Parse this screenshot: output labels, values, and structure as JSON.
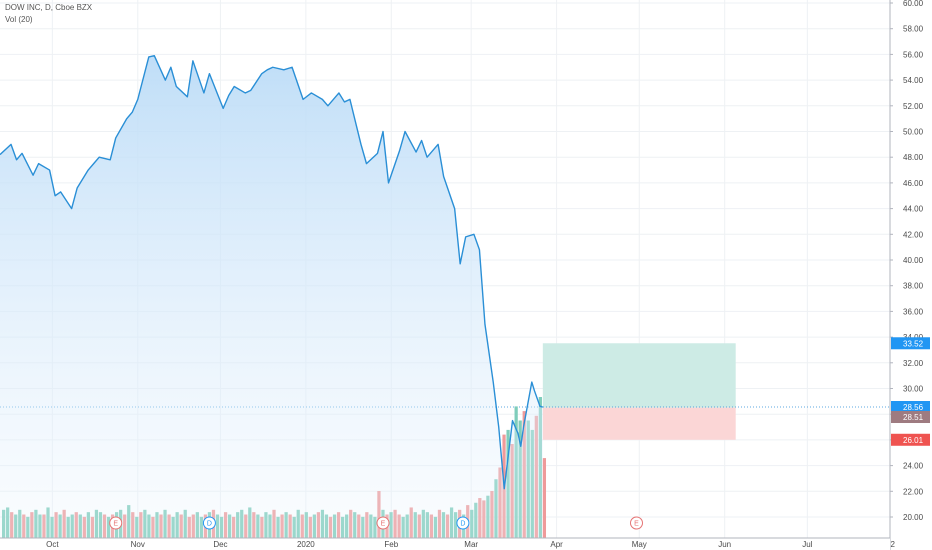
{
  "legend": {
    "symbol_line": "DOW INC, D, Cboe BZX",
    "volume_line": "Vol (20)"
  },
  "colors": {
    "line": "#2a8fd6",
    "area_top": "#bcdcf7",
    "volume_up": "#7fcdbb",
    "volume_down": "#ef9a9a",
    "profit_zone": "#cdebe5",
    "loss_zone": "#fbd6d6",
    "badge_last": "#2196f3",
    "badge_target": "#2196f3",
    "badge_stop": "#ef5350",
    "badge_entry": "#9e7b80"
  },
  "chart_data": {
    "type": "line",
    "title": "DOW INC, D, Cboe BZX",
    "xlabel": "",
    "ylabel": "",
    "ylim": [
      19,
      60
    ],
    "y_ticks": [
      "20.00",
      "22.00",
      "24.00",
      "26.00",
      "28.00",
      "30.00",
      "32.00",
      "34.00",
      "36.00",
      "38.00",
      "40.00",
      "42.00",
      "44.00",
      "46.00",
      "48.00",
      "50.00",
      "52.00",
      "54.00",
      "56.00",
      "58.00",
      "60.00"
    ],
    "x_ticks": [
      {
        "label": "Oct",
        "date": "2019-10-01"
      },
      {
        "label": "Nov",
        "date": "2019-11-01"
      },
      {
        "label": "Dec",
        "date": "2019-12-01"
      },
      {
        "label": "2020",
        "date": "2020-01-01"
      },
      {
        "label": "Feb",
        "date": "2020-02-01"
      },
      {
        "label": "Mar",
        "date": "2020-03-01"
      },
      {
        "label": "Apr",
        "date": "2020-04-01"
      },
      {
        "label": "May",
        "date": "2020-05-01"
      },
      {
        "label": "Jun",
        "date": "2020-06-01"
      },
      {
        "label": "Jul",
        "date": "2020-07-01"
      },
      {
        "label": "2",
        "date": "2020-08-01"
      }
    ],
    "x_range": [
      "2019-09-12",
      "2020-07-31"
    ],
    "grid": true,
    "price_series": {
      "name": "DOW INC",
      "dates": [
        "2019-09-12",
        "2019-09-16",
        "2019-09-18",
        "2019-09-20",
        "2019-09-24",
        "2019-09-26",
        "2019-09-30",
        "2019-10-02",
        "2019-10-04",
        "2019-10-08",
        "2019-10-10",
        "2019-10-14",
        "2019-10-16",
        "2019-10-18",
        "2019-10-22",
        "2019-10-24",
        "2019-10-28",
        "2019-10-30",
        "2019-11-01",
        "2019-11-05",
        "2019-11-07",
        "2019-11-11",
        "2019-11-13",
        "2019-11-15",
        "2019-11-19",
        "2019-11-21",
        "2019-11-25",
        "2019-11-27",
        "2019-12-02",
        "2019-12-04",
        "2019-12-06",
        "2019-12-10",
        "2019-12-12",
        "2019-12-16",
        "2019-12-18",
        "2019-12-20",
        "2019-12-24",
        "2019-12-27",
        "2019-12-31",
        "2020-01-03",
        "2020-01-07",
        "2020-01-09",
        "2020-01-13",
        "2020-01-15",
        "2020-01-17",
        "2020-01-21",
        "2020-01-23",
        "2020-01-27",
        "2020-01-29",
        "2020-01-31",
        "2020-02-04",
        "2020-02-06",
        "2020-02-10",
        "2020-02-12",
        "2020-02-14",
        "2020-02-18",
        "2020-02-20",
        "2020-02-24",
        "2020-02-26",
        "2020-02-28",
        "2020-03-02",
        "2020-03-04",
        "2020-03-06",
        "2020-03-09",
        "2020-03-11",
        "2020-03-13",
        "2020-03-16",
        "2020-03-18",
        "2020-03-19",
        "2020-03-20",
        "2020-03-23",
        "2020-03-24",
        "2020-03-25",
        "2020-03-26",
        "2020-03-27"
      ],
      "values": [
        48.2,
        49.0,
        47.8,
        48.3,
        46.6,
        47.5,
        47.0,
        45.0,
        45.3,
        44.0,
        45.6,
        47.0,
        47.5,
        48.0,
        47.8,
        49.5,
        51.0,
        51.5,
        52.5,
        55.8,
        55.9,
        54.0,
        55.0,
        53.5,
        52.7,
        55.5,
        53.0,
        54.5,
        51.8,
        52.8,
        53.5,
        53.0,
        53.2,
        54.5,
        54.8,
        55.0,
        54.8,
        55.0,
        52.5,
        53.0,
        52.5,
        52.0,
        53.0,
        52.3,
        52.5,
        49.0,
        47.5,
        48.3,
        50.0,
        46.0,
        48.5,
        50.0,
        48.4,
        49.3,
        48.0,
        49.0,
        46.5,
        44.0,
        39.7,
        41.8,
        42.0,
        40.8,
        35.0,
        30.5,
        27.0,
        22.2,
        27.5,
        26.5,
        25.5,
        27.0,
        30.5,
        29.8,
        29.2,
        28.6,
        28.56
      ]
    },
    "volume_series": {
      "name": "Vol (20)",
      "up": [
        1,
        1,
        0,
        1,
        1,
        0,
        1,
        0,
        1,
        1,
        0,
        1,
        1,
        0,
        1,
        0,
        1,
        1,
        0,
        1,
        0,
        1,
        0,
        1,
        1,
        0,
        1,
        0,
        1,
        1,
        0,
        1,
        0,
        1,
        0,
        1,
        1,
        0,
        1,
        0,
        1,
        0,
        1,
        1,
        0,
        1,
        0,
        0,
        1,
        1,
        0,
        1,
        0,
        1,
        1,
        0,
        1,
        0,
        1,
        1,
        0,
        1,
        0,
        1,
        0,
        1,
        1,
        0,
        1,
        0,
        1,
        0,
        1,
        1,
        0,
        1,
        0,
        1,
        0,
        1,
        1,
        0,
        1,
        0,
        1,
        1,
        0,
        1,
        0,
        1,
        0,
        1,
        1,
        0,
        1,
        0,
        1,
        0,
        0,
        1,
        1,
        0,
        1,
        0,
        1,
        1,
        0,
        1,
        0,
        1,
        0,
        1,
        1,
        0,
        1,
        0,
        1,
        1,
        0,
        0,
        1,
        0,
        1,
        0,
        0,
        1,
        0,
        1,
        1,
        0,
        1,
        1,
        0,
        1,
        0
      ],
      "levels": [
        0.6,
        0.65,
        0.55,
        0.5,
        0.6,
        0.5,
        0.45,
        0.55,
        0.6,
        0.5,
        0.5,
        0.65,
        0.45,
        0.55,
        0.5,
        0.6,
        0.45,
        0.5,
        0.55,
        0.5,
        0.45,
        0.55,
        0.45,
        0.6,
        0.55,
        0.5,
        0.45,
        0.5,
        0.55,
        0.6,
        0.5,
        0.7,
        0.55,
        0.45,
        0.55,
        0.6,
        0.5,
        0.45,
        0.55,
        0.5,
        0.6,
        0.5,
        0.45,
        0.55,
        0.5,
        0.6,
        0.45,
        0.5,
        0.55,
        0.45,
        0.5,
        0.55,
        0.6,
        0.5,
        0.45,
        0.55,
        0.5,
        0.45,
        0.55,
        0.6,
        0.5,
        0.65,
        0.55,
        0.5,
        0.45,
        0.55,
        0.5,
        0.6,
        0.45,
        0.5,
        0.55,
        0.5,
        0.45,
        0.6,
        0.5,
        0.55,
        0.45,
        0.5,
        0.55,
        0.6,
        0.5,
        0.45,
        0.5,
        0.55,
        0.45,
        0.5,
        0.6,
        0.55,
        0.5,
        0.45,
        0.55,
        0.5,
        0.45,
        1.0,
        0.6,
        0.5,
        0.55,
        0.6,
        0.5,
        0.45,
        0.5,
        0.65,
        0.55,
        0.5,
        0.6,
        0.55,
        0.5,
        0.45,
        0.6,
        0.55,
        0.5,
        0.65,
        0.55,
        0.6,
        0.5,
        0.7,
        0.6,
        0.75,
        0.85,
        0.8,
        0.9,
        1.0,
        1.25,
        1.5,
        2.2,
        2.3,
        2.0,
        2.8,
        2.5,
        2.7,
        2.5,
        2.3,
        2.6,
        3.0,
        1.7
      ]
    },
    "position": {
      "target": 33.52,
      "entry": 28.51,
      "stop": 26.01,
      "last": 28.56,
      "start_date": "2020-03-27",
      "end_date": "2020-06-05"
    },
    "price_labels": {
      "target": "33.52",
      "last": "28.56",
      "entry": "28.51",
      "stop": "26.01"
    },
    "events": [
      {
        "letter": "E",
        "date": "2019-10-24",
        "kind": "earnings"
      },
      {
        "letter": "D",
        "date": "2019-11-27",
        "kind": "dividend"
      },
      {
        "letter": "E",
        "date": "2020-01-29",
        "kind": "earnings"
      },
      {
        "letter": "D",
        "date": "2020-02-27",
        "kind": "dividend"
      },
      {
        "letter": "E",
        "date": "2020-04-30",
        "kind": "earnings"
      }
    ]
  }
}
